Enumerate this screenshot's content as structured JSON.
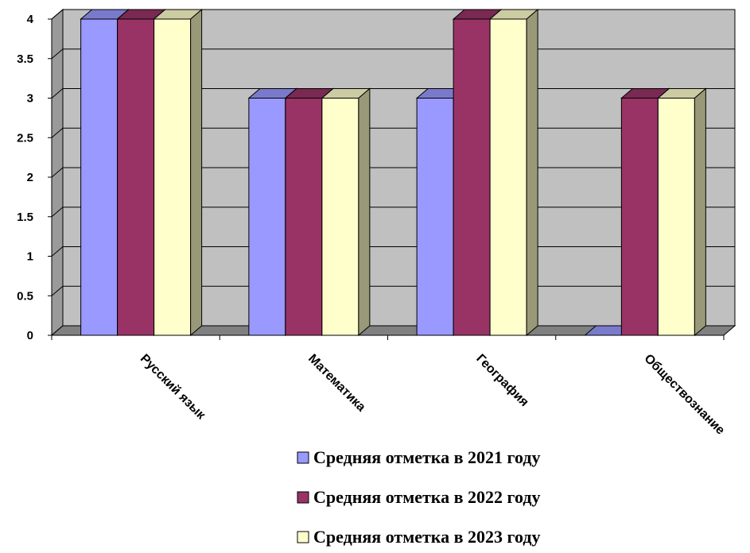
{
  "chart_data": {
    "type": "bar",
    "categories": [
      "Русский язык",
      "Математика",
      "География",
      "Обществознание"
    ],
    "series": [
      {
        "name": "Средняя отметка в 2021 году",
        "values": [
          4,
          3,
          3,
          0
        ],
        "color": "#9999FF"
      },
      {
        "name": "Средняя отметка в 2022 году",
        "values": [
          4,
          3,
          4,
          3
        ],
        "color": "#993366"
      },
      {
        "name": "Средняя отметка в 2023 году",
        "values": [
          4,
          3,
          4,
          3
        ],
        "color": "#FFFFCC"
      }
    ],
    "yticks": [
      "0",
      "0.5",
      "1",
      "1.5",
      "2",
      "2.5",
      "3",
      "3.5",
      "4"
    ],
    "ylim": [
      0,
      4
    ],
    "grid": true,
    "legend_position": "bottom",
    "style": "3d-clustered-column"
  }
}
